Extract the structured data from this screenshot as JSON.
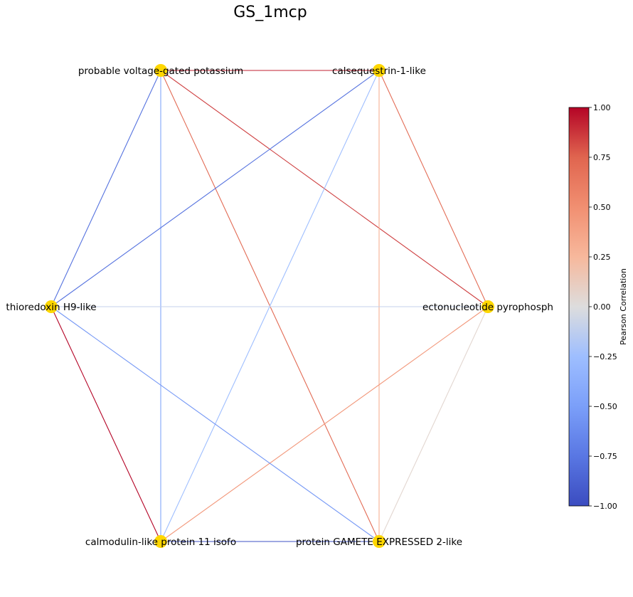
{
  "title": "GS_1mcp",
  "nodes": [
    {
      "id": "probable",
      "label": "probable voltage-gated potassium"
    },
    {
      "id": "calseq",
      "label": "calsequestrin-1-like"
    },
    {
      "id": "ecto",
      "label": "ectonucleotide pyrophosph"
    },
    {
      "id": "gamete",
      "label": "protein GAMETE EXPRESSED 2-like"
    },
    {
      "id": "calmod",
      "label": "calmodulin-like protein 11 isofo"
    },
    {
      "id": "thioredoxin",
      "label": "thioredoxin H9-like"
    }
  ],
  "edges": [
    {
      "source": "probable",
      "target": "calseq",
      "correlation": 0.93
    },
    {
      "source": "probable",
      "target": "ecto",
      "correlation": 0.85
    },
    {
      "source": "probable",
      "target": "gamete",
      "correlation": 0.72
    },
    {
      "source": "probable",
      "target": "calmod",
      "correlation": -0.45
    },
    {
      "source": "probable",
      "target": "thioredoxin",
      "correlation": -0.78
    },
    {
      "source": "calseq",
      "target": "ecto",
      "correlation": 0.7
    },
    {
      "source": "calseq",
      "target": "gamete",
      "correlation": 0.3
    },
    {
      "source": "calseq",
      "target": "calmod",
      "correlation": -0.25
    },
    {
      "source": "calseq",
      "target": "thioredoxin",
      "correlation": -0.78
    },
    {
      "source": "ecto",
      "target": "gamete",
      "correlation": 0.05
    },
    {
      "source": "ecto",
      "target": "calmod",
      "correlation": 0.45
    },
    {
      "source": "ecto",
      "target": "thioredoxin",
      "correlation": -0.1
    },
    {
      "source": "gamete",
      "target": "calmod",
      "correlation": -0.97
    },
    {
      "source": "gamete",
      "target": "thioredoxin",
      "correlation": -0.55
    },
    {
      "source": "calmod",
      "target": "thioredoxin",
      "correlation": 1.0
    }
  ],
  "colorbar": {
    "label": "Pearson Correlation",
    "min": -1.0,
    "max": 1.0,
    "colormap": "coolwarm",
    "ticks": [
      "1.00",
      "0.75",
      "0.50",
      "0.25",
      "0.00",
      "−0.25",
      "−0.50",
      "−0.75",
      "−1.00"
    ]
  },
  "colors": {
    "node_fill": "#FFD700",
    "cmap_low": "#3B4CC0",
    "cmap_mid": "#DDDDDD",
    "cmap_high": "#B40426"
  }
}
